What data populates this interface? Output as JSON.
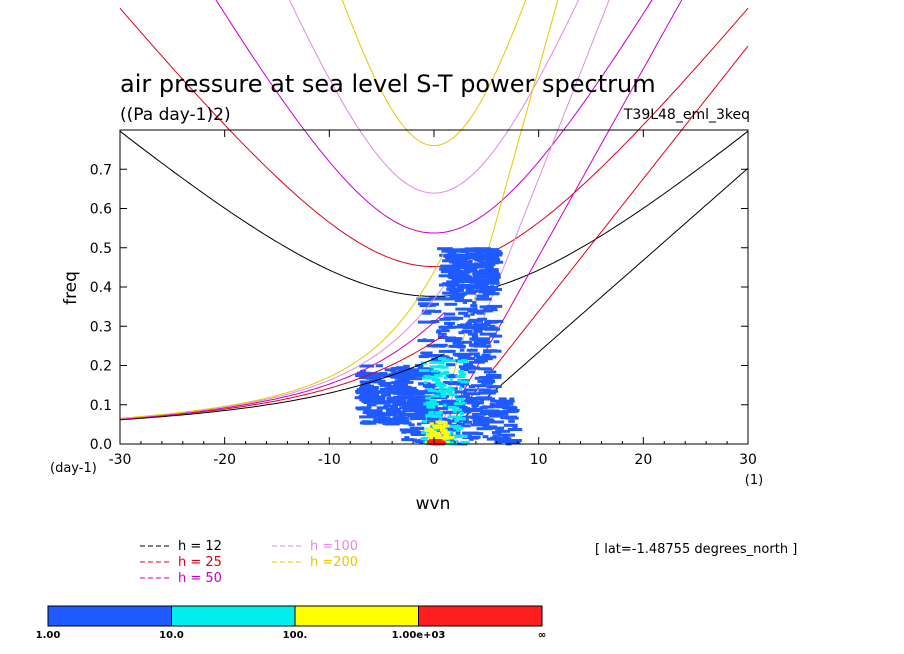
{
  "chart_data": {
    "type": "heatmap",
    "title": "air pressure at sea level S-T power spectrum",
    "units": "((Pa day-1)2)",
    "experiment": "T39L48_eml_3keq",
    "xlabel": "wvn",
    "ylabel": "freq",
    "y_unit_label": "(day-1)",
    "x_unit_label": "(1)",
    "xlim": [
      -30,
      30
    ],
    "ylim": [
      0,
      0.8
    ],
    "x_ticks": [
      "-30",
      "-20",
      "-10",
      "0",
      "10",
      "20",
      "30"
    ],
    "y_ticks": [
      "0.0",
      "0.1",
      "0.2",
      "0.3",
      "0.4",
      "0.5",
      "0.6",
      "0.7"
    ],
    "lat_label": "[ lat=-1.48755 degrees_north ]",
    "dispersion_curves": [
      {
        "name": "h = 12",
        "h": 12,
        "color": "#000000"
      },
      {
        "name": "h = 25",
        "h": 25,
        "color": "#e0001b"
      },
      {
        "name": "h = 50",
        "h": 50,
        "color": "#c800c8"
      },
      {
        "name": "h =100",
        "h": 100,
        "color": "#e08ce0"
      },
      {
        "name": "h =200",
        "h": 200,
        "color": "#e6c800"
      }
    ],
    "colorbar": {
      "labels": [
        "1.00",
        "10.0",
        "100.",
        "1.00e+03",
        "∞"
      ],
      "colors": [
        "#1e5aff",
        "#00eeee",
        "#ffff00",
        "#ff1e1e"
      ]
    },
    "power_regions": [
      {
        "x": [
          -3,
          8
        ],
        "y": [
          0.0,
          0.12
        ],
        "level": 1
      },
      {
        "x": [
          -1,
          6
        ],
        "y": [
          0.12,
          0.38
        ],
        "level": 1
      },
      {
        "x": [
          1,
          6
        ],
        "y": [
          0.38,
          0.5
        ],
        "level": 1
      },
      {
        "x": [
          -7,
          -1
        ],
        "y": [
          0.05,
          0.2
        ],
        "level": 1
      },
      {
        "x": [
          -1,
          3
        ],
        "y": [
          0.0,
          0.22
        ],
        "level": 2
      },
      {
        "x": [
          -0.5,
          1.5
        ],
        "y": [
          0.0,
          0.06
        ],
        "level": 3
      },
      {
        "x": [
          -0.3,
          0.7
        ],
        "y": [
          0.0,
          0.01
        ],
        "level": 4
      }
    ]
  }
}
